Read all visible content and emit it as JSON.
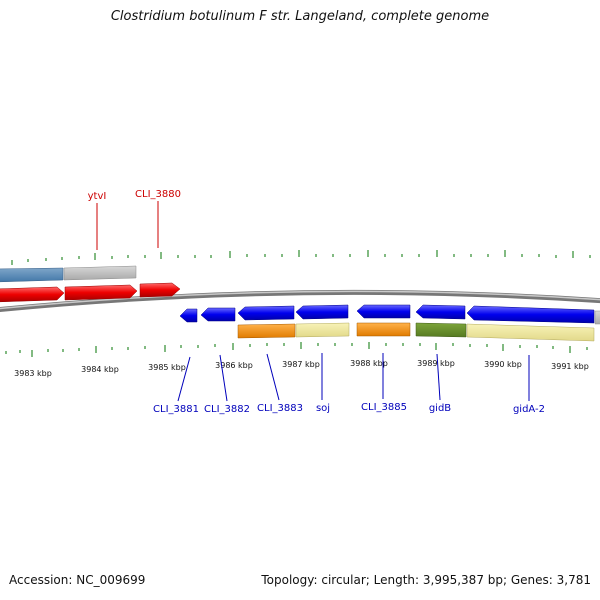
{
  "title": "Clostridium botulinum F str. Langeland, complete genome",
  "footer": {
    "accession": "Accession: NC_009699",
    "summary": "Topology: circular; Length: 3,995,387 bp; Genes: 3,781"
  },
  "colors": {
    "backbone": "#888888",
    "tick": "#2e8b2e",
    "plus_label": "#cc0000",
    "minus_label": "#0000bb"
  },
  "scale_labels": [
    "3983 kbp",
    "3984 kbp",
    "3985 kbp",
    "3986 kbp",
    "3987 kbp",
    "3988 kbp",
    "3989 kbp",
    "3990 kbp",
    "3991 kbp"
  ],
  "gene_labels_top": [
    "ytvI",
    "CLI_3880"
  ],
  "gene_labels_bottom": [
    "CLI_3881",
    "CLI_3882",
    "CLI_3883",
    "soj",
    "CLI_3885",
    "gidB",
    "gidA-2"
  ]
}
